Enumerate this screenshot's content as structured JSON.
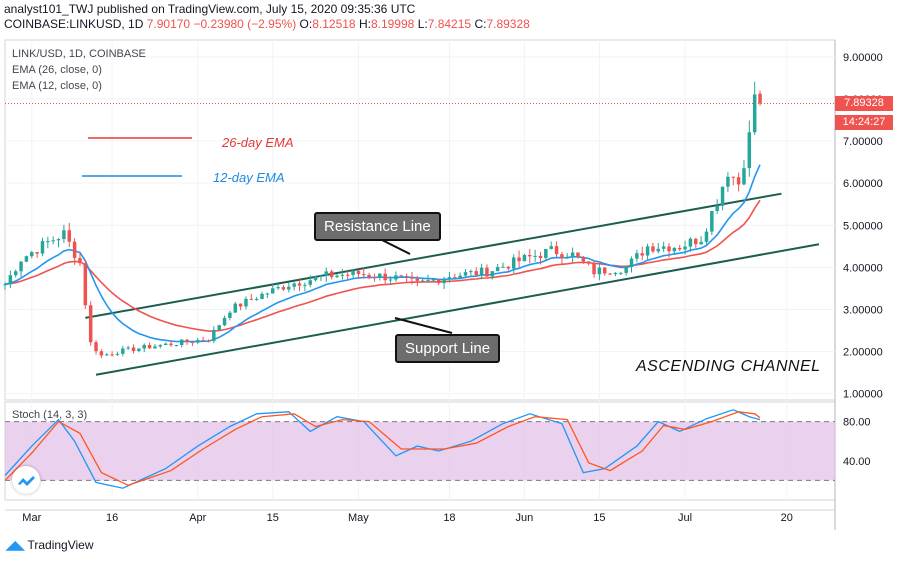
{
  "header": {
    "line1": "analyst101_TWJ published on TradingView.com, July 15, 2020 09:35:36 UTC",
    "symbol": "COINBASE:LINKUSD, 1D",
    "last": "7.90170",
    "change": "−0.23980 (−2.95%)",
    "o_label": "O:",
    "o_value": "8.12518",
    "h_label": "H:",
    "h_value": "8.19998",
    "l_label": "L:",
    "l_value": "7.84215",
    "c_label": "C:",
    "c_value": "7.89328"
  },
  "legend": {
    "pair": "LINK/USD, 1D, COINBASE",
    "ema26": "EMA (26, close, 0)",
    "ema12": "EMA (12, close, 0)"
  },
  "annotations": {
    "resistance": "Resistance Line",
    "support": "Support Line",
    "ema26_label": "26-day EMA",
    "ema12_label": "12-day EMA",
    "channel": "ASCENDING CHANNEL"
  },
  "price_axis": {
    "current_price": "7.89328",
    "countdown": "14:24:27"
  },
  "footer": {
    "brand": "TradingView"
  },
  "colors": {
    "up": "#26a69a",
    "down": "#ef5350",
    "ema26": "#ef5350",
    "ema12": "#2196f3",
    "stoch_bg": "#e1bee7",
    "stoch_k": "#2196f3",
    "stoch_d": "#ff5722"
  },
  "chart_data": [
    {
      "type": "candlestick",
      "title": "LINK/USD, 1D, COINBASE",
      "y_axis": "price (USD)",
      "ylim": [
        0.85,
        9.4
      ],
      "yticks": [
        9,
        8,
        7,
        6,
        5,
        4,
        3,
        2,
        1
      ],
      "ytick_labels": [
        "9.00000",
        "8.00000",
        "7.00000",
        "6.00000",
        "5.00000",
        "4.00000",
        "3.00000",
        "2.00000",
        "1.00000"
      ],
      "x_range": [
        "2020-02-25",
        "2020-07-29"
      ],
      "x_ticks": [
        {
          "date": "2020-03-01",
          "label": "Mar"
        },
        {
          "date": "2020-03-16",
          "label": "16"
        },
        {
          "date": "2020-04-01",
          "label": "Apr"
        },
        {
          "date": "2020-04-15",
          "label": "15"
        },
        {
          "date": "2020-05-01",
          "label": "May"
        },
        {
          "date": "2020-05-18",
          "label": "18"
        },
        {
          "date": "2020-06-01",
          "label": "Jun"
        },
        {
          "date": "2020-06-15",
          "label": "15"
        },
        {
          "date": "2020-07-01",
          "label": "Jul"
        },
        {
          "date": "2020-07-20",
          "label": "20"
        }
      ],
      "grid": true,
      "ohlc_anchor_closes": [
        [
          "2020-02-25",
          3.6
        ],
        [
          "2020-02-28",
          4.2
        ],
        [
          "2020-03-04",
          4.6
        ],
        [
          "2020-03-07",
          4.8
        ],
        [
          "2020-03-10",
          4.1
        ],
        [
          "2020-03-12",
          2.2
        ],
        [
          "2020-03-14",
          1.9
        ],
        [
          "2020-03-17",
          2.0
        ],
        [
          "2020-03-22",
          2.1
        ],
        [
          "2020-03-28",
          2.2
        ],
        [
          "2020-04-03",
          2.3
        ],
        [
          "2020-04-07",
          3.0
        ],
        [
          "2020-04-12",
          3.3
        ],
        [
          "2020-04-18",
          3.6
        ],
        [
          "2020-04-25",
          3.8
        ],
        [
          "2020-05-01",
          3.85
        ],
        [
          "2020-05-08",
          3.75
        ],
        [
          "2020-05-12",
          3.6
        ],
        [
          "2020-05-18",
          3.8
        ],
        [
          "2020-05-25",
          3.9
        ],
        [
          "2020-06-01",
          4.2
        ],
        [
          "2020-06-06",
          4.4
        ],
        [
          "2020-06-10",
          4.3
        ],
        [
          "2020-06-14",
          3.9
        ],
        [
          "2020-06-20",
          4.0
        ],
        [
          "2020-06-24",
          4.5
        ],
        [
          "2020-06-30",
          4.5
        ],
        [
          "2020-07-04",
          4.7
        ],
        [
          "2020-07-07",
          5.6
        ],
        [
          "2020-07-09",
          6.3
        ],
        [
          "2020-07-11",
          6.0
        ],
        [
          "2020-07-13",
          7.1
        ],
        [
          "2020-07-14",
          8.13
        ],
        [
          "2020-07-15",
          7.89
        ]
      ],
      "last_candle": {
        "date": "2020-07-15",
        "open": 8.12518,
        "high": 8.19998,
        "low": 7.84215,
        "close": 7.89328
      },
      "resistance_line": [
        [
          "2020-03-11",
          2.8
        ],
        [
          "2020-07-19",
          5.75
        ]
      ],
      "support_line": [
        [
          "2020-03-13",
          1.45
        ],
        [
          "2020-07-26",
          4.55
        ]
      ]
    },
    {
      "type": "line",
      "title": "Stoch (14, 3, 3)",
      "ylim": [
        0,
        100
      ],
      "yticks": [
        80,
        40
      ],
      "ytick_labels": [
        "80.00",
        "40.00"
      ],
      "band": [
        20,
        80
      ],
      "series": [
        {
          "name": "%K",
          "points": [
            [
              "2020-02-25",
              25
            ],
            [
              "2020-03-01",
              55
            ],
            [
              "2020-03-06",
              82
            ],
            [
              "2020-03-09",
              60
            ],
            [
              "2020-03-13",
              18
            ],
            [
              "2020-03-18",
              12
            ],
            [
              "2020-03-26",
              32
            ],
            [
              "2020-04-01",
              55
            ],
            [
              "2020-04-07",
              75
            ],
            [
              "2020-04-12",
              88
            ],
            [
              "2020-04-18",
              90
            ],
            [
              "2020-04-22",
              70
            ],
            [
              "2020-04-27",
              85
            ],
            [
              "2020-05-02",
              80
            ],
            [
              "2020-05-08",
              45
            ],
            [
              "2020-05-12",
              55
            ],
            [
              "2020-05-16",
              50
            ],
            [
              "2020-05-22",
              60
            ],
            [
              "2020-05-28",
              78
            ],
            [
              "2020-06-02",
              88
            ],
            [
              "2020-06-08",
              78
            ],
            [
              "2020-06-12",
              28
            ],
            [
              "2020-06-16",
              32
            ],
            [
              "2020-06-22",
              55
            ],
            [
              "2020-06-26",
              80
            ],
            [
              "2020-06-30",
              70
            ],
            [
              "2020-07-05",
              83
            ],
            [
              "2020-07-10",
              92
            ],
            [
              "2020-07-13",
              85
            ],
            [
              "2020-07-15",
              82
            ]
          ]
        },
        {
          "name": "%D",
          "points": [
            [
              "2020-02-25",
              20
            ],
            [
              "2020-03-01",
              48
            ],
            [
              "2020-03-06",
              80
            ],
            [
              "2020-03-10",
              68
            ],
            [
              "2020-03-14",
              28
            ],
            [
              "2020-03-19",
              15
            ],
            [
              "2020-03-27",
              30
            ],
            [
              "2020-04-02",
              52
            ],
            [
              "2020-04-08",
              72
            ],
            [
              "2020-04-13",
              85
            ],
            [
              "2020-04-19",
              88
            ],
            [
              "2020-04-23",
              75
            ],
            [
              "2020-04-28",
              82
            ],
            [
              "2020-05-03",
              80
            ],
            [
              "2020-05-09",
              52
            ],
            [
              "2020-05-13",
              52
            ],
            [
              "2020-05-17",
              52
            ],
            [
              "2020-05-23",
              58
            ],
            [
              "2020-05-29",
              75
            ],
            [
              "2020-06-03",
              85
            ],
            [
              "2020-06-09",
              82
            ],
            [
              "2020-06-13",
              38
            ],
            [
              "2020-06-17",
              30
            ],
            [
              "2020-06-23",
              50
            ],
            [
              "2020-06-27",
              76
            ],
            [
              "2020-07-01",
              72
            ],
            [
              "2020-07-06",
              80
            ],
            [
              "2020-07-11",
              90
            ],
            [
              "2020-07-14",
              88
            ],
            [
              "2020-07-15",
              84
            ]
          ]
        }
      ]
    }
  ]
}
